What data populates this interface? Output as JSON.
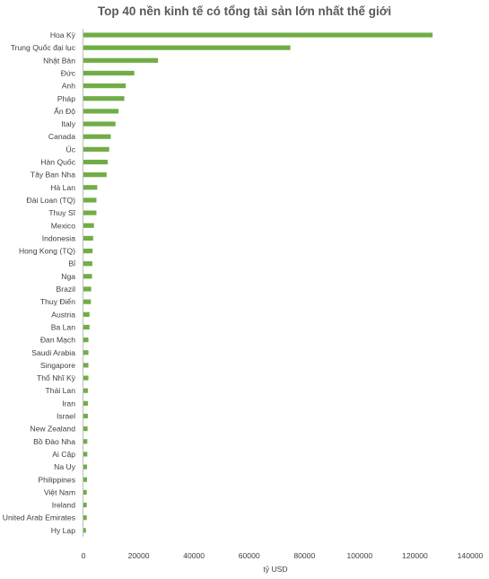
{
  "chart_data": {
    "type": "bar",
    "orientation": "horizontal",
    "title": "Top 40 nền kinh tế có tổng tài sản lớn nhất thế giới",
    "xlabel": "tỷ USD",
    "ylabel": "",
    "xlim": [
      0,
      140000
    ],
    "xticks": [
      "0",
      "20000",
      "40000",
      "60000",
      "80000",
      "100000",
      "120000",
      "140000"
    ],
    "grid": false,
    "legend": "none",
    "bar_color": "#70AD47",
    "categories": [
      "Hoa Kỳ",
      "Trung Quốc đại lục",
      "Nhật Bản",
      "Đức",
      "Anh",
      "Pháp",
      "Ấn Độ",
      "Italy",
      "Canada",
      "Úc",
      "Hàn Quốc",
      "Tây Ban Nha",
      "Hà Lan",
      "Đài Loan (TQ)",
      "Thuỵ Sĩ",
      "Mexico",
      "Indonesia",
      "Hong Kong (TQ)",
      "Bỉ",
      "Nga",
      "Brazil",
      "Thuỵ Điển",
      "Austria",
      "Ba Lan",
      "Đan Mạch",
      "Saudi Arabia",
      "Singapore",
      "Thổ Nhĩ Kỳ",
      "Thái Lan",
      "Iran",
      "Israel",
      "New Zealand",
      "Bồ Đào Nha",
      "Ai Cập",
      "Na Uy",
      "Philippines",
      "Việt Nam",
      "Ireland",
      "United Arab Emirates",
      "Hy Lạp"
    ],
    "values": [
      126400,
      74900,
      27000,
      18400,
      15300,
      14800,
      12700,
      11600,
      9900,
      9300,
      8800,
      8400,
      5000,
      4700,
      4700,
      3800,
      3500,
      3300,
      3200,
      3100,
      2800,
      2700,
      2200,
      2200,
      1800,
      1800,
      1800,
      1800,
      1600,
      1600,
      1600,
      1500,
      1400,
      1400,
      1300,
      1300,
      1200,
      1200,
      1200,
      900
    ]
  }
}
